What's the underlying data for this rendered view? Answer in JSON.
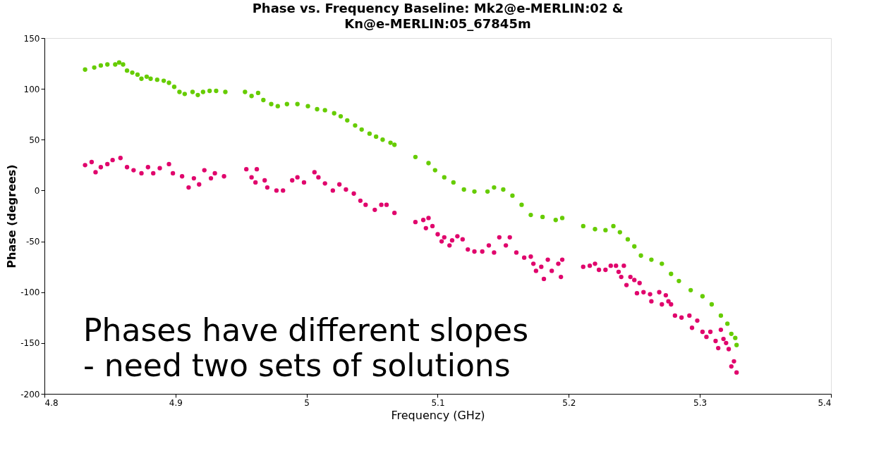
{
  "chart_data": {
    "type": "scatter",
    "title": "Phase vs. Frequency Baseline: Mk2@e-MERLIN:02 & Kn@e-MERLIN:05_67845m",
    "xlabel": "Frequency (GHz)",
    "ylabel": "Phase (degrees)",
    "xlim": [
      4.8,
      5.4
    ],
    "xticks": [
      4.8,
      4.9,
      5,
      5.1,
      5.2,
      5.3,
      5.4
    ],
    "ylim": [
      -200,
      150
    ],
    "yticks": [
      -200,
      -150,
      -100,
      -50,
      0,
      50,
      100,
      150
    ],
    "grid": false,
    "legend": false,
    "marker": "circle",
    "annotations": [
      "Phases have different slopes\n- need two sets of solutions"
    ],
    "series": [
      {
        "color": "#66cc00",
        "x": [
          4.831,
          4.838,
          4.843,
          4.848,
          4.854,
          4.857,
          4.86,
          4.863,
          4.867,
          4.871,
          4.874,
          4.878,
          4.881,
          4.886,
          4.891,
          4.895,
          4.899,
          4.903,
          4.907,
          4.913,
          4.917,
          4.921,
          4.926,
          4.931,
          4.938,
          4.953,
          4.958,
          4.963,
          4.967,
          4.973,
          4.978,
          4.985,
          4.993,
          5.001,
          5.008,
          5.014,
          5.021,
          5.026,
          5.031,
          5.037,
          5.042,
          5.048,
          5.053,
          5.058,
          5.064,
          5.067,
          5.083,
          5.093,
          5.098,
          5.105,
          5.112,
          5.12,
          5.128,
          5.138,
          5.143,
          5.15,
          5.157,
          5.164,
          5.171,
          5.18,
          5.19,
          5.195,
          5.211,
          5.22,
          5.228,
          5.234,
          5.239,
          5.245,
          5.25,
          5.255,
          5.263,
          5.271,
          5.278,
          5.284,
          5.293,
          5.302,
          5.309,
          5.316,
          5.321,
          5.324,
          5.327,
          5.328
        ],
        "values": [
          119,
          121,
          123,
          124,
          124,
          126,
          124,
          118,
          116,
          114,
          110,
          112,
          110,
          109,
          108,
          106,
          102,
          97,
          95,
          97,
          94,
          97,
          98,
          98,
          97,
          97,
          93,
          96,
          89,
          85,
          83,
          85,
          85,
          83,
          80,
          79,
          76,
          73,
          69,
          64,
          60,
          56,
          53,
          50,
          47,
          45,
          33,
          27,
          20,
          13,
          8,
          1,
          -1,
          -1,
          3,
          1,
          -5,
          -14,
          -24,
          -26,
          -29,
          -27,
          -35,
          -38,
          -39,
          -35,
          -41,
          -48,
          -55,
          -64,
          -68,
          -72,
          -82,
          -89,
          -98,
          -104,
          -112,
          -123,
          -131,
          -141,
          -145,
          -152
        ]
      },
      {
        "color": "#e0046c",
        "x": [
          4.831,
          4.836,
          4.839,
          4.843,
          4.848,
          4.852,
          4.858,
          4.863,
          4.868,
          4.874,
          4.879,
          4.883,
          4.888,
          4.895,
          4.898,
          4.905,
          4.91,
          4.914,
          4.918,
          4.922,
          4.927,
          4.93,
          4.937,
          4.954,
          4.958,
          4.961,
          4.962,
          4.968,
          4.97,
          4.977,
          4.982,
          4.989,
          4.993,
          4.998,
          5.006,
          5.009,
          5.014,
          5.02,
          5.025,
          5.03,
          5.036,
          5.041,
          5.045,
          5.052,
          5.057,
          5.061,
          5.067,
          5.083,
          5.089,
          5.093,
          5.091,
          5.096,
          5.1,
          5.105,
          5.103,
          5.111,
          5.109,
          5.115,
          5.119,
          5.123,
          5.128,
          5.134,
          5.139,
          5.143,
          5.147,
          5.155,
          5.152,
          5.16,
          5.166,
          5.171,
          5.173,
          5.175,
          5.179,
          5.181,
          5.184,
          5.187,
          5.192,
          5.194,
          5.195,
          5.211,
          5.216,
          5.22,
          5.223,
          5.228,
          5.232,
          5.236,
          5.238,
          5.24,
          5.242,
          5.244,
          5.247,
          5.25,
          5.254,
          5.252,
          5.257,
          5.263,
          5.262,
          5.269,
          5.271,
          5.274,
          5.276,
          5.278,
          5.281,
          5.286,
          5.292,
          5.298,
          5.294,
          5.302,
          5.308,
          5.305,
          5.312,
          5.314,
          5.316,
          5.318,
          5.32,
          5.322,
          5.326,
          5.324,
          5.328
        ],
        "values": [
          25,
          28,
          18,
          23,
          26,
          30,
          32,
          23,
          20,
          17,
          23,
          17,
          22,
          26,
          17,
          14,
          3,
          12,
          6,
          20,
          12,
          17,
          14,
          21,
          13,
          8,
          21,
          10,
          3,
          0,
          0,
          10,
          13,
          8,
          18,
          13,
          7,
          0,
          6,
          1,
          -3,
          -10,
          -14,
          -19,
          -14,
          -14,
          -22,
          -31,
          -29,
          -27,
          -37,
          -35,
          -43,
          -46,
          -50,
          -49,
          -54,
          -45,
          -48,
          -58,
          -60,
          -60,
          -54,
          -61,
          -46,
          -46,
          -54,
          -61,
          -66,
          -65,
          -72,
          -79,
          -75,
          -87,
          -68,
          -79,
          -72,
          -85,
          -68,
          -75,
          -74,
          -72,
          -78,
          -78,
          -74,
          -74,
          -80,
          -85,
          -74,
          -93,
          -85,
          -88,
          -91,
          -101,
          -100,
          -109,
          -102,
          -100,
          -112,
          -103,
          -109,
          -112,
          -123,
          -125,
          -123,
          -128,
          -135,
          -139,
          -139,
          -144,
          -148,
          -155,
          -137,
          -146,
          -150,
          -156,
          -168,
          -173,
          -179
        ]
      }
    ]
  }
}
